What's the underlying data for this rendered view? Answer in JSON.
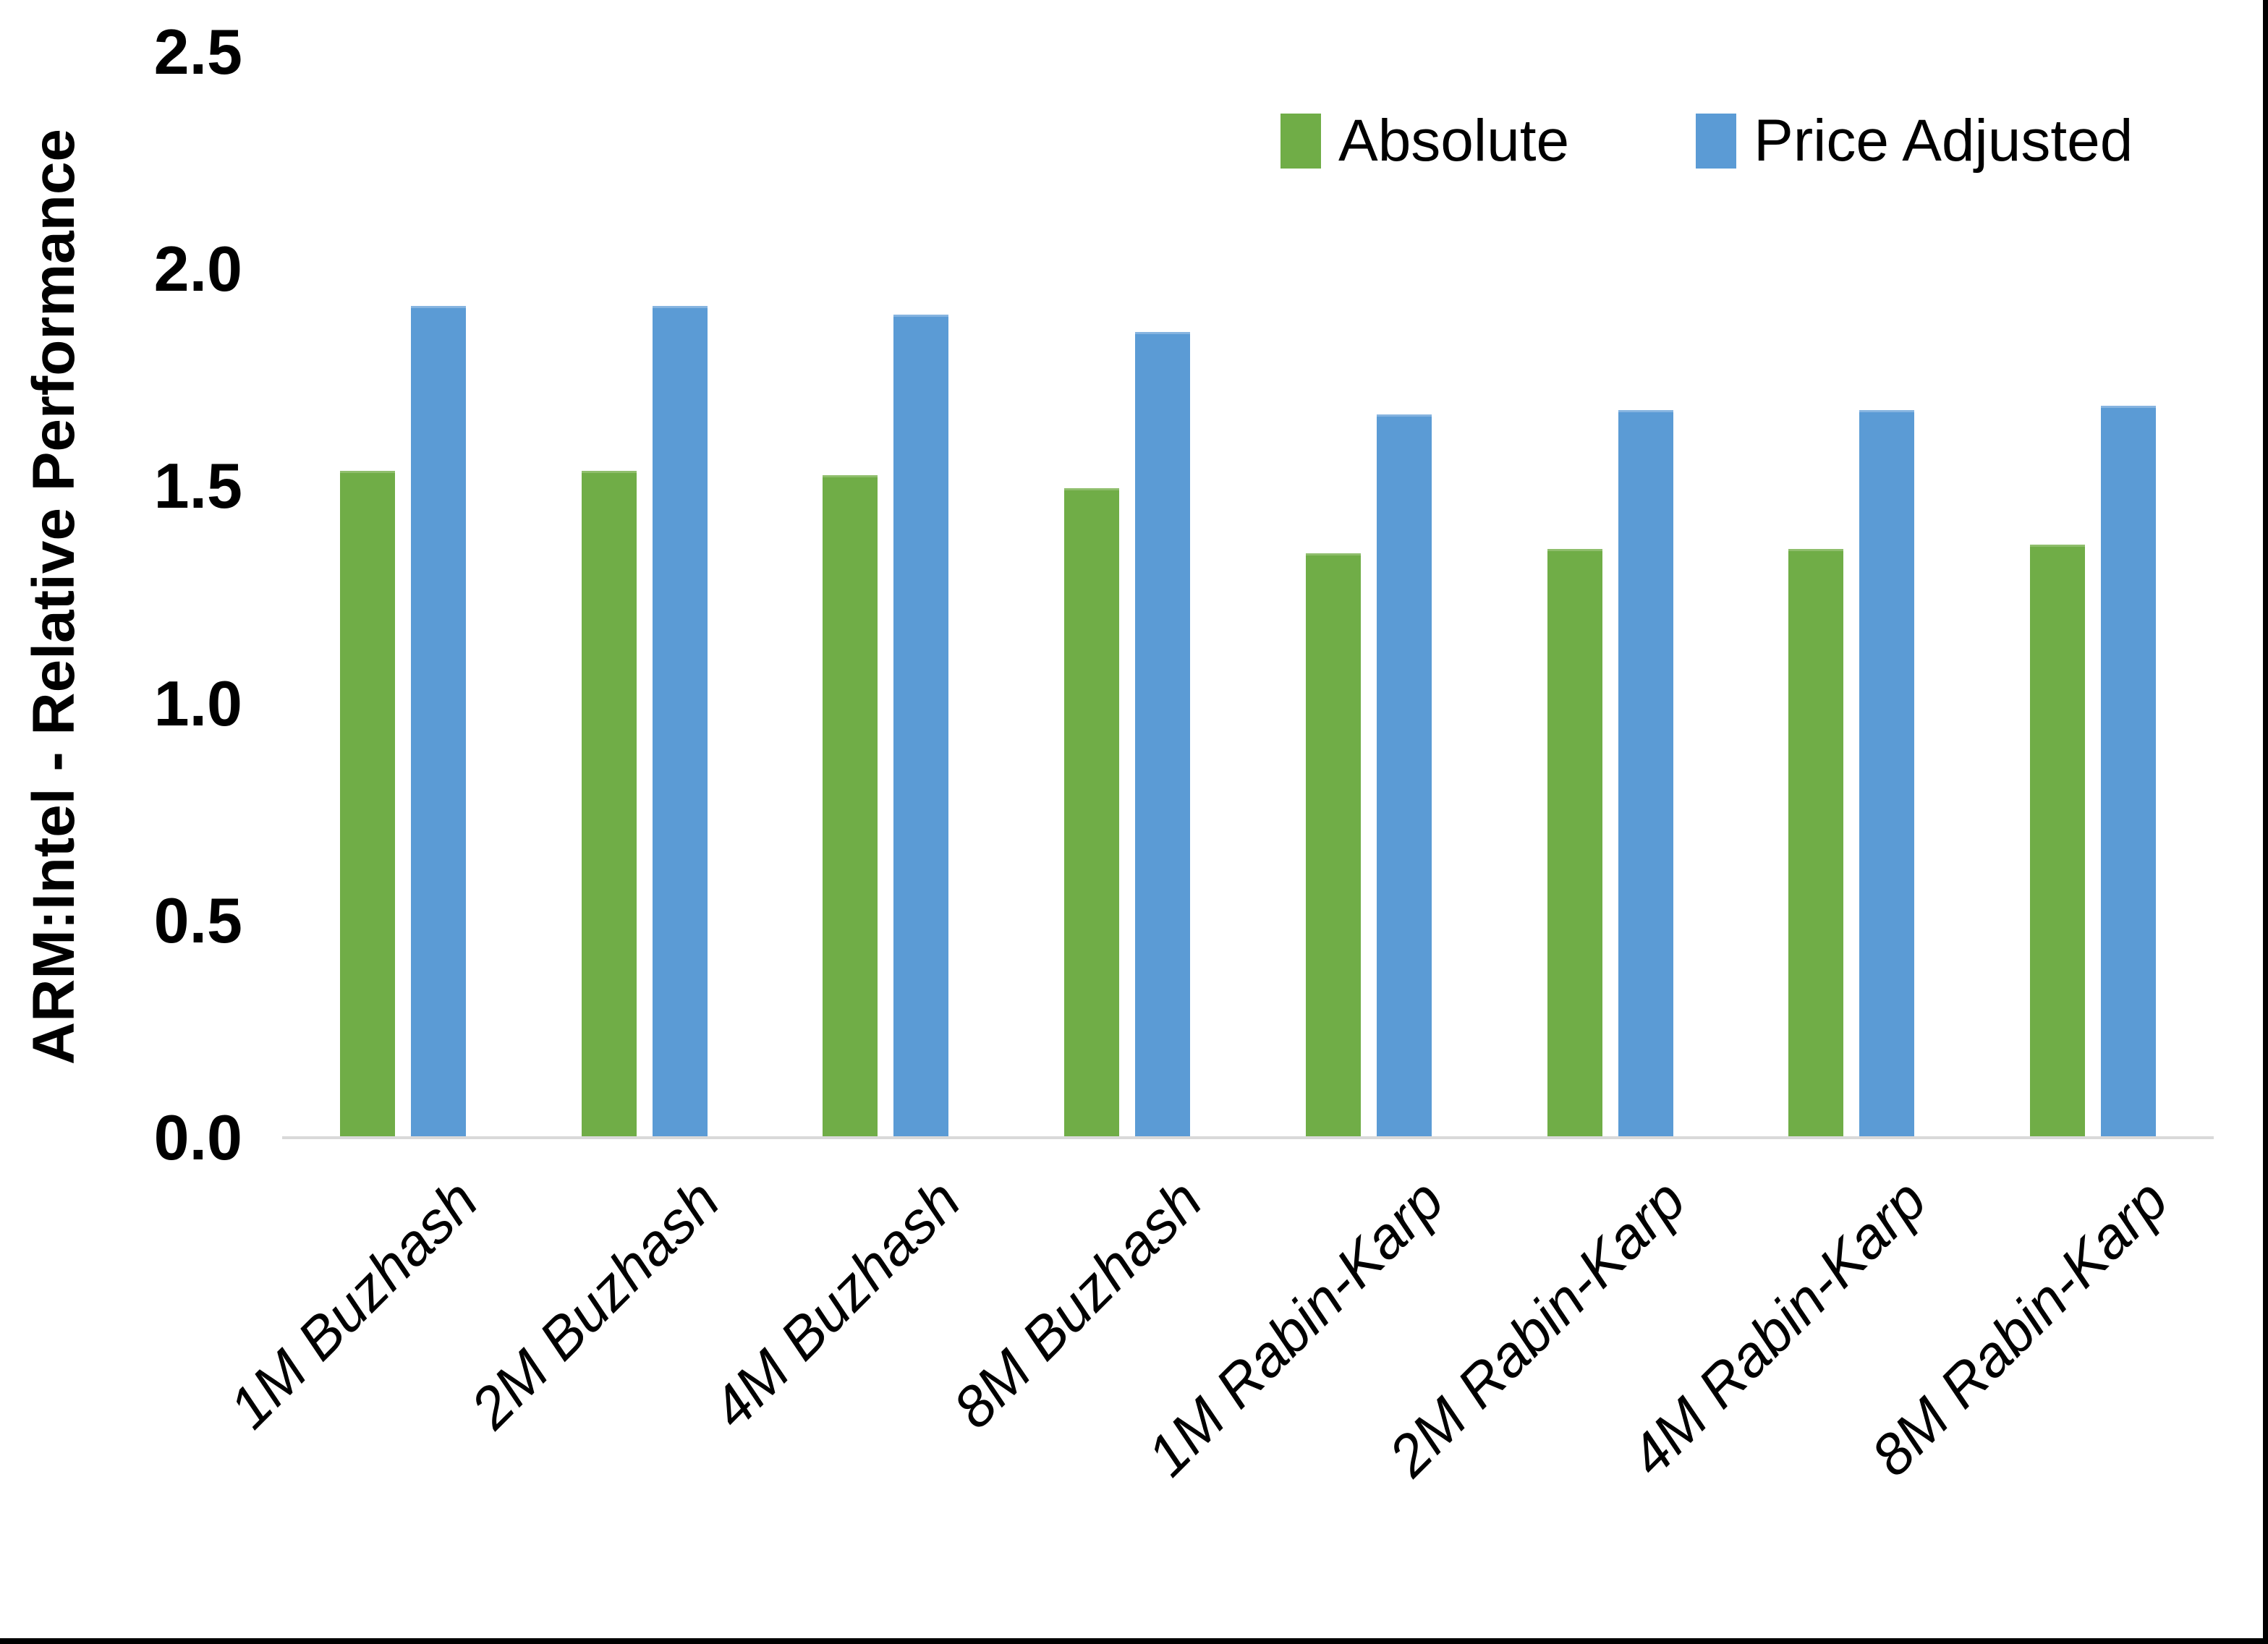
{
  "chart_data": {
    "type": "bar",
    "title": "",
    "xlabel": "",
    "ylabel": "ARM:Intel - Relative Performance",
    "ylim": [
      0,
      2.5
    ],
    "ytick_labels": [
      "0.0",
      "0.5",
      "1.0",
      "1.5",
      "2.0",
      "2.5"
    ],
    "grid": false,
    "legend_position": "top-right",
    "categories": [
      "1M Buzhash",
      "2M Buzhash",
      "4M Buzhash",
      "8M Buzhash",
      "1M Rabin-Karp",
      "2M Rabin-Karp",
      "4M Rabin-Karp",
      "8M Rabin-Karp"
    ],
    "series": [
      {
        "name": "Absolute",
        "color": "#70AD47",
        "values": [
          1.53,
          1.53,
          1.52,
          1.49,
          1.34,
          1.35,
          1.35,
          1.36
        ]
      },
      {
        "name": "Price Adjusted",
        "color": "#5B9BD5",
        "values": [
          1.91,
          1.91,
          1.89,
          1.85,
          1.66,
          1.67,
          1.67,
          1.68
        ]
      }
    ]
  },
  "colors": {
    "absolute_green": "#70AD47",
    "price_adjusted_blue": "#5B9BD5",
    "axis_line_gray": "#D9D9D9",
    "text_black": "#000000",
    "frame_black": "#000000"
  }
}
